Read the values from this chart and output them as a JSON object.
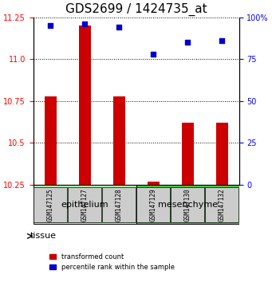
{
  "title": "GDS2699 / 1424735_at",
  "samples": [
    "GSM147125",
    "GSM147127",
    "GSM147128",
    "GSM147129",
    "GSM147130",
    "GSM147132"
  ],
  "red_values": [
    10.78,
    11.2,
    10.78,
    10.27,
    10.62,
    10.62
  ],
  "blue_values": [
    95,
    96,
    94,
    78,
    85,
    86
  ],
  "y_min": 10.25,
  "y_max": 11.25,
  "y_ticks": [
    10.25,
    10.5,
    10.75,
    11.0,
    11.25
  ],
  "right_y_ticks": [
    0,
    25,
    50,
    75,
    100
  ],
  "right_y_labels": [
    "0",
    "25",
    "50",
    "75",
    "100%"
  ],
  "tissue_groups": [
    {
      "label": "epithelium",
      "start": 0,
      "end": 3,
      "color": "#aaffaa"
    },
    {
      "label": "mesenchyme",
      "start": 3,
      "end": 6,
      "color": "#44cc44"
    }
  ],
  "bar_color": "#cc0000",
  "dot_color": "#0000cc",
  "grid_color": "#000000",
  "label_tissue": "tissue",
  "legend_red": "transformed count",
  "legend_blue": "percentile rank within the sample",
  "title_fontsize": 11,
  "tick_label_fontsize": 8,
  "axis_label_fontsize": 8
}
